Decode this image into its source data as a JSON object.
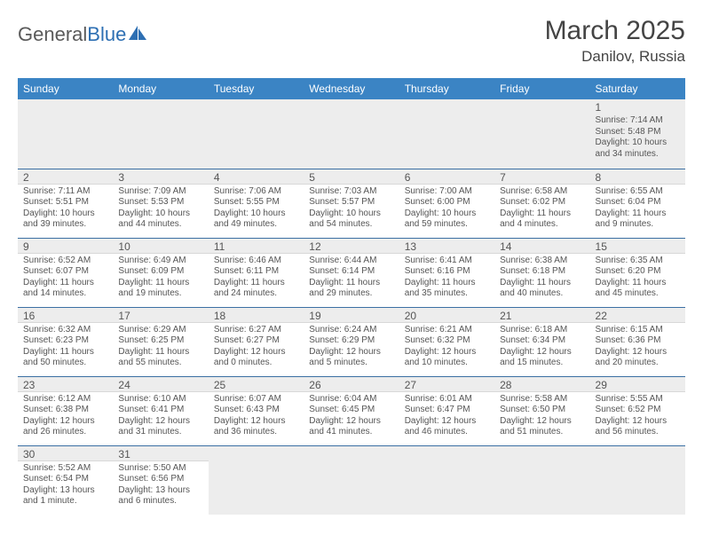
{
  "branding": {
    "part1": "General",
    "part2": "Blue"
  },
  "title": "March 2025",
  "location": "Danilov, Russia",
  "colors": {
    "header_bg": "#3b84c4",
    "header_text": "#ffffff",
    "row_border": "#3b6fa3",
    "daynum_bg": "#ededed",
    "text": "#555555",
    "logo_sail": "#2d6fb3"
  },
  "weekdays": [
    "Sunday",
    "Monday",
    "Tuesday",
    "Wednesday",
    "Thursday",
    "Friday",
    "Saturday"
  ],
  "weeks": [
    [
      null,
      null,
      null,
      null,
      null,
      null,
      {
        "n": "1",
        "sr": "Sunrise: 7:14 AM",
        "ss": "Sunset: 5:48 PM",
        "d1": "Daylight: 10 hours",
        "d2": "and 34 minutes."
      }
    ],
    [
      {
        "n": "2",
        "sr": "Sunrise: 7:11 AM",
        "ss": "Sunset: 5:51 PM",
        "d1": "Daylight: 10 hours",
        "d2": "and 39 minutes."
      },
      {
        "n": "3",
        "sr": "Sunrise: 7:09 AM",
        "ss": "Sunset: 5:53 PM",
        "d1": "Daylight: 10 hours",
        "d2": "and 44 minutes."
      },
      {
        "n": "4",
        "sr": "Sunrise: 7:06 AM",
        "ss": "Sunset: 5:55 PM",
        "d1": "Daylight: 10 hours",
        "d2": "and 49 minutes."
      },
      {
        "n": "5",
        "sr": "Sunrise: 7:03 AM",
        "ss": "Sunset: 5:57 PM",
        "d1": "Daylight: 10 hours",
        "d2": "and 54 minutes."
      },
      {
        "n": "6",
        "sr": "Sunrise: 7:00 AM",
        "ss": "Sunset: 6:00 PM",
        "d1": "Daylight: 10 hours",
        "d2": "and 59 minutes."
      },
      {
        "n": "7",
        "sr": "Sunrise: 6:58 AM",
        "ss": "Sunset: 6:02 PM",
        "d1": "Daylight: 11 hours",
        "d2": "and 4 minutes."
      },
      {
        "n": "8",
        "sr": "Sunrise: 6:55 AM",
        "ss": "Sunset: 6:04 PM",
        "d1": "Daylight: 11 hours",
        "d2": "and 9 minutes."
      }
    ],
    [
      {
        "n": "9",
        "sr": "Sunrise: 6:52 AM",
        "ss": "Sunset: 6:07 PM",
        "d1": "Daylight: 11 hours",
        "d2": "and 14 minutes."
      },
      {
        "n": "10",
        "sr": "Sunrise: 6:49 AM",
        "ss": "Sunset: 6:09 PM",
        "d1": "Daylight: 11 hours",
        "d2": "and 19 minutes."
      },
      {
        "n": "11",
        "sr": "Sunrise: 6:46 AM",
        "ss": "Sunset: 6:11 PM",
        "d1": "Daylight: 11 hours",
        "d2": "and 24 minutes."
      },
      {
        "n": "12",
        "sr": "Sunrise: 6:44 AM",
        "ss": "Sunset: 6:14 PM",
        "d1": "Daylight: 11 hours",
        "d2": "and 29 minutes."
      },
      {
        "n": "13",
        "sr": "Sunrise: 6:41 AM",
        "ss": "Sunset: 6:16 PM",
        "d1": "Daylight: 11 hours",
        "d2": "and 35 minutes."
      },
      {
        "n": "14",
        "sr": "Sunrise: 6:38 AM",
        "ss": "Sunset: 6:18 PM",
        "d1": "Daylight: 11 hours",
        "d2": "and 40 minutes."
      },
      {
        "n": "15",
        "sr": "Sunrise: 6:35 AM",
        "ss": "Sunset: 6:20 PM",
        "d1": "Daylight: 11 hours",
        "d2": "and 45 minutes."
      }
    ],
    [
      {
        "n": "16",
        "sr": "Sunrise: 6:32 AM",
        "ss": "Sunset: 6:23 PM",
        "d1": "Daylight: 11 hours",
        "d2": "and 50 minutes."
      },
      {
        "n": "17",
        "sr": "Sunrise: 6:29 AM",
        "ss": "Sunset: 6:25 PM",
        "d1": "Daylight: 11 hours",
        "d2": "and 55 minutes."
      },
      {
        "n": "18",
        "sr": "Sunrise: 6:27 AM",
        "ss": "Sunset: 6:27 PM",
        "d1": "Daylight: 12 hours",
        "d2": "and 0 minutes."
      },
      {
        "n": "19",
        "sr": "Sunrise: 6:24 AM",
        "ss": "Sunset: 6:29 PM",
        "d1": "Daylight: 12 hours",
        "d2": "and 5 minutes."
      },
      {
        "n": "20",
        "sr": "Sunrise: 6:21 AM",
        "ss": "Sunset: 6:32 PM",
        "d1": "Daylight: 12 hours",
        "d2": "and 10 minutes."
      },
      {
        "n": "21",
        "sr": "Sunrise: 6:18 AM",
        "ss": "Sunset: 6:34 PM",
        "d1": "Daylight: 12 hours",
        "d2": "and 15 minutes."
      },
      {
        "n": "22",
        "sr": "Sunrise: 6:15 AM",
        "ss": "Sunset: 6:36 PM",
        "d1": "Daylight: 12 hours",
        "d2": "and 20 minutes."
      }
    ],
    [
      {
        "n": "23",
        "sr": "Sunrise: 6:12 AM",
        "ss": "Sunset: 6:38 PM",
        "d1": "Daylight: 12 hours",
        "d2": "and 26 minutes."
      },
      {
        "n": "24",
        "sr": "Sunrise: 6:10 AM",
        "ss": "Sunset: 6:41 PM",
        "d1": "Daylight: 12 hours",
        "d2": "and 31 minutes."
      },
      {
        "n": "25",
        "sr": "Sunrise: 6:07 AM",
        "ss": "Sunset: 6:43 PM",
        "d1": "Daylight: 12 hours",
        "d2": "and 36 minutes."
      },
      {
        "n": "26",
        "sr": "Sunrise: 6:04 AM",
        "ss": "Sunset: 6:45 PM",
        "d1": "Daylight: 12 hours",
        "d2": "and 41 minutes."
      },
      {
        "n": "27",
        "sr": "Sunrise: 6:01 AM",
        "ss": "Sunset: 6:47 PM",
        "d1": "Daylight: 12 hours",
        "d2": "and 46 minutes."
      },
      {
        "n": "28",
        "sr": "Sunrise: 5:58 AM",
        "ss": "Sunset: 6:50 PM",
        "d1": "Daylight: 12 hours",
        "d2": "and 51 minutes."
      },
      {
        "n": "29",
        "sr": "Sunrise: 5:55 AM",
        "ss": "Sunset: 6:52 PM",
        "d1": "Daylight: 12 hours",
        "d2": "and 56 minutes."
      }
    ],
    [
      {
        "n": "30",
        "sr": "Sunrise: 5:52 AM",
        "ss": "Sunset: 6:54 PM",
        "d1": "Daylight: 13 hours",
        "d2": "and 1 minute."
      },
      {
        "n": "31",
        "sr": "Sunrise: 5:50 AM",
        "ss": "Sunset: 6:56 PM",
        "d1": "Daylight: 13 hours",
        "d2": "and 6 minutes."
      },
      null,
      null,
      null,
      null,
      null
    ]
  ]
}
